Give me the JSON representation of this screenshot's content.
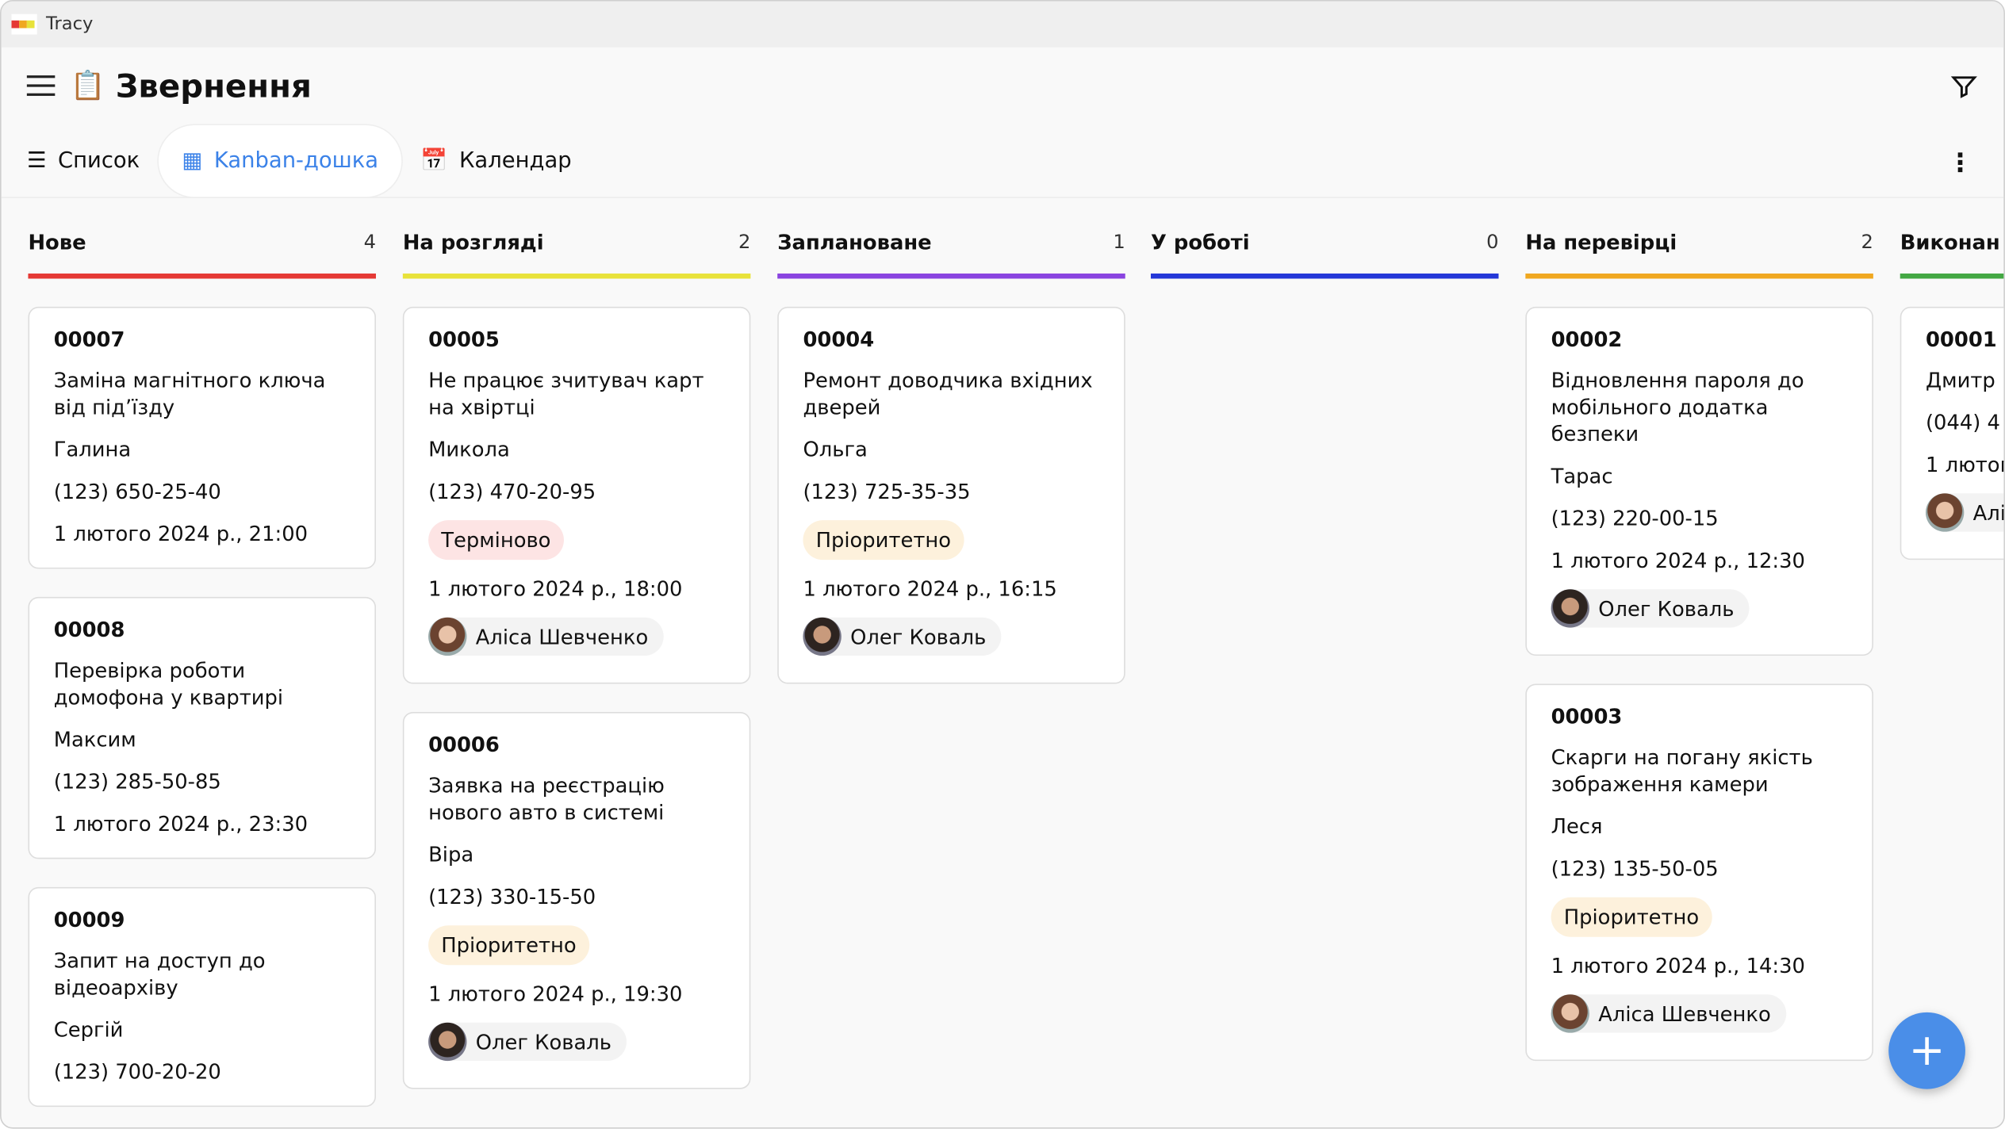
{
  "app": {
    "name": "Tracy"
  },
  "header": {
    "title": "Звернення",
    "icon": "clipboard-icon"
  },
  "tabs": [
    {
      "label": "Список",
      "icon": "list-icon"
    },
    {
      "label": "Kanban-дошка",
      "icon": "kanban-icon",
      "active": true
    },
    {
      "label": "Календар",
      "icon": "calendar-icon"
    }
  ],
  "colors": {
    "accent": "#3b82e8"
  },
  "columns": [
    {
      "title": "Нове",
      "count": "4",
      "color": "#e53935",
      "cards": [
        {
          "id": "00007",
          "subject": "Заміна магнітного ключа від під’їзду",
          "name": "Галина",
          "phone": "(123) 650-25-40",
          "date": "1 лютого 2024 р., 21:00"
        },
        {
          "id": "00008",
          "subject": "Перевірка роботи домофона у квартирі",
          "name": "Максим",
          "phone": "(123) 285-50-85",
          "date": "1 лютого 2024 р., 23:30"
        },
        {
          "id": "00009",
          "subject": "Запит на доступ до відеоархіву",
          "name": "Сергій",
          "phone": "(123) 700-20-20"
        }
      ]
    },
    {
      "title": "На розгляді",
      "count": "2",
      "color": "#e8e23a",
      "cards": [
        {
          "id": "00005",
          "subject": "Не працює зчитувач карт на хвіртці",
          "name": "Микола",
          "phone": "(123) 470-20-95",
          "tag": "Терміново",
          "tagType": "urgent",
          "date": "1 лютого 2024 р., 18:00",
          "assignee": "Аліса Шевченко",
          "avatar": "f"
        },
        {
          "id": "00006",
          "subject": "Заявка на реєстрацію нового авто в системі",
          "name": "Віра",
          "phone": "(123) 330-15-50",
          "tag": "Пріоритетно",
          "tagType": "prio",
          "date": "1 лютого 2024 р., 19:30",
          "assignee": "Олег Коваль",
          "avatar": "m"
        }
      ]
    },
    {
      "title": "Заплановане",
      "count": "1",
      "color": "#8a44e0",
      "cards": [
        {
          "id": "00004",
          "subject": "Ремонт доводчика вхідних дверей",
          "name": "Ольга",
          "phone": "(123) 725-35-35",
          "tag": "Пріоритетно",
          "tagType": "prio",
          "date": "1 лютого 2024 р., 16:15",
          "assignee": "Олег Коваль",
          "avatar": "m"
        }
      ]
    },
    {
      "title": "У роботі",
      "count": "0",
      "color": "#2437d8",
      "cards": []
    },
    {
      "title": "На перевірці",
      "count": "2",
      "color": "#f0a820",
      "cards": [
        {
          "id": "00002",
          "subject": "Відновлення пароля до мобільного додатка безпеки",
          "name": "Тарас",
          "phone": "(123) 220-00-15",
          "date": "1 лютого 2024 р., 12:30",
          "assignee": "Олег Коваль",
          "avatar": "m"
        },
        {
          "id": "00003",
          "subject": "Скарги на погану якість зображення камери",
          "name": "Леся",
          "phone": "(123) 135-50-05",
          "tag": "Пріоритетно",
          "tagType": "prio",
          "date": "1 лютого 2024 р., 14:30",
          "assignee": "Аліса Шевченко",
          "avatar": "f"
        }
      ]
    },
    {
      "title": "Виконан",
      "count": "",
      "color": "#43a843",
      "cards": [
        {
          "id": "00001",
          "name": "Дмитр",
          "phone": "(044) 4",
          "date": "1 лютог",
          "assignee": "Алі",
          "avatar": "f"
        }
      ]
    }
  ]
}
